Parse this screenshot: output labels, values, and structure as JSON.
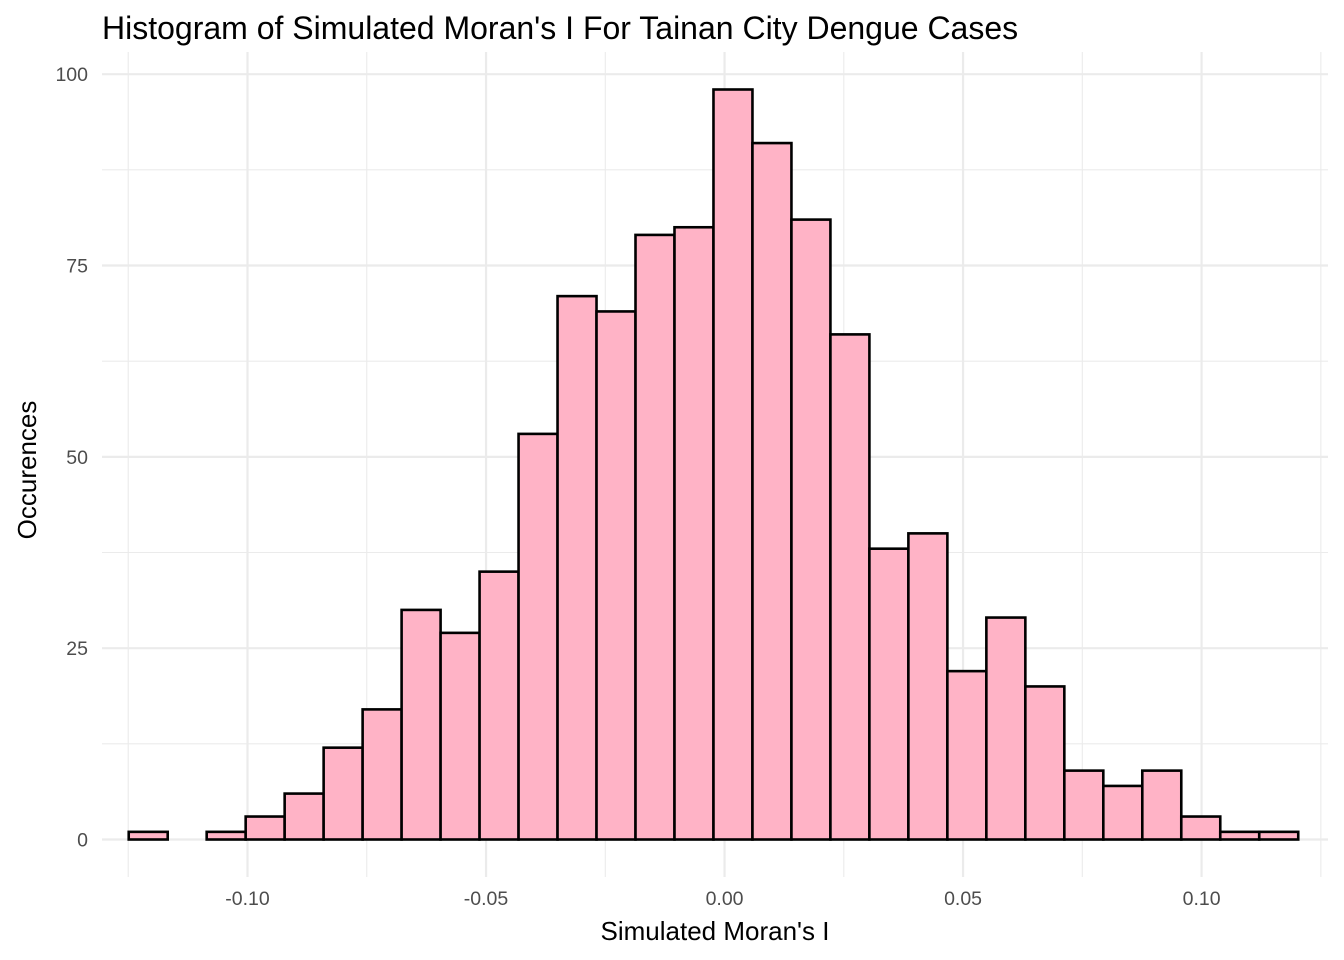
{
  "chart_data": {
    "type": "bar",
    "title": "Histogram of Simulated Moran's I For Tainan City Dengue Cases",
    "xlabel": "Simulated Moran's I",
    "ylabel": "Occurences",
    "xlim": [
      -0.1305,
      0.1265
    ],
    "ylim": [
      -4.9,
      102.9
    ],
    "bin_width": 0.008172,
    "first_bin_start": -0.1249,
    "values": [
      1,
      0,
      1,
      3,
      6,
      12,
      17,
      30,
      27,
      35,
      53,
      71,
      69,
      79,
      80,
      98,
      91,
      81,
      66,
      38,
      40,
      22,
      29,
      20,
      9,
      7,
      9,
      3,
      1,
      1
    ],
    "x_ticks": [
      -0.1,
      -0.05,
      0.0,
      0.05,
      0.1
    ],
    "x_tick_labels": [
      "-0.10",
      "-0.05",
      "0.00",
      "0.05",
      "0.10"
    ],
    "x_minor_ticks": [
      -0.125,
      -0.075,
      -0.025,
      0.025,
      0.075,
      0.125
    ],
    "y_ticks": [
      0,
      25,
      50,
      75,
      100
    ],
    "y_tick_labels": [
      "0",
      "25",
      "50",
      "75",
      "100"
    ],
    "y_minor_ticks": [
      12.5,
      37.5,
      62.5,
      87.5
    ],
    "grid": true,
    "legend": "none",
    "colors": {
      "bar_fill": "#FFB3C6",
      "bar_outline": "#000000",
      "grid": "#EBEBEB",
      "tick_text": "#4D4D4D",
      "title_text": "#000000"
    }
  }
}
